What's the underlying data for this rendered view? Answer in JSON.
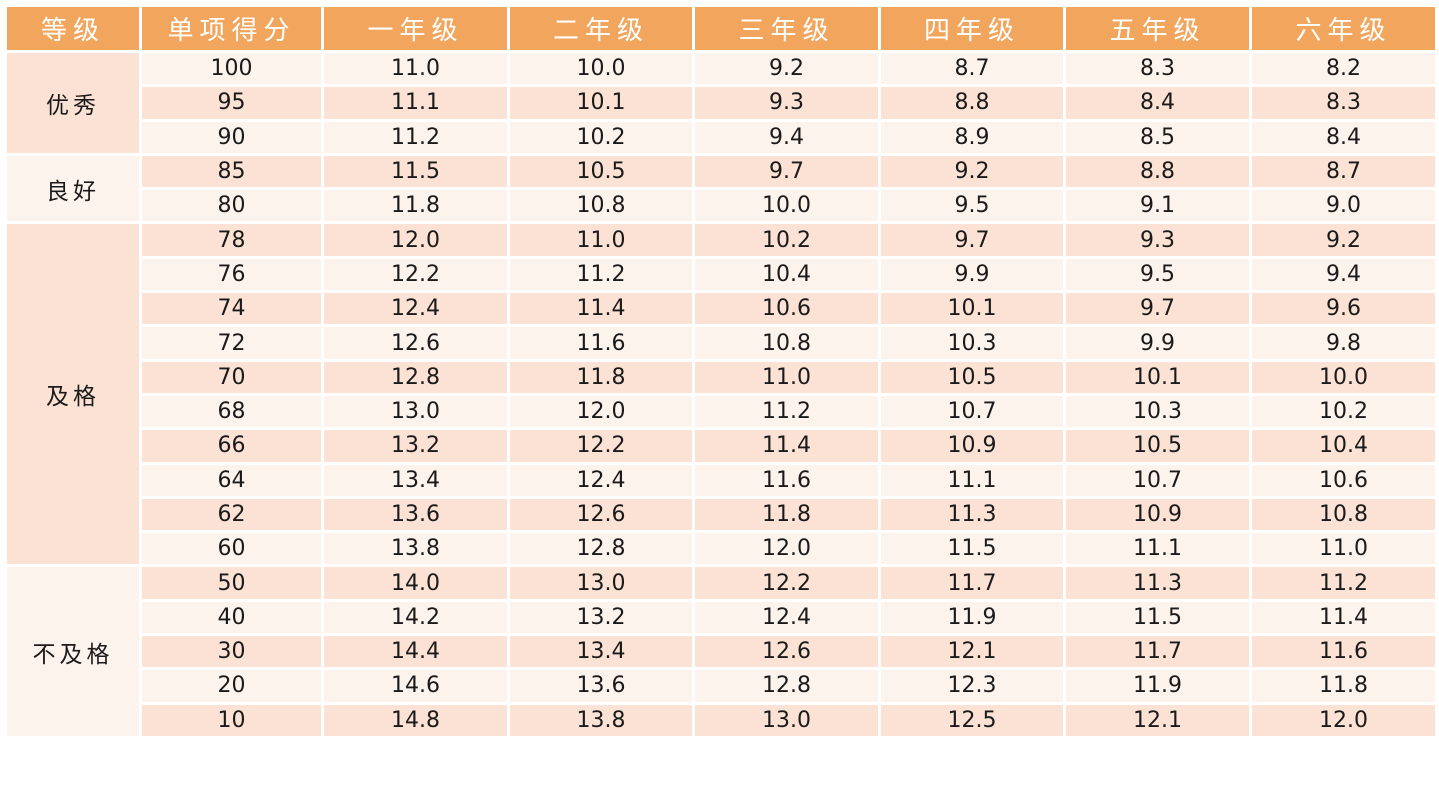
{
  "headers": [
    "等级",
    "单项得分",
    "一年级",
    "二年级",
    "三年级",
    "四年级",
    "五年级",
    "六年级"
  ],
  "rows": [
    {
      "grade": "优秀",
      "span": 3,
      "score": "100",
      "values": [
        "11.0",
        "10.0",
        "9.2",
        "8.7",
        "8.3",
        "8.2"
      ]
    },
    {
      "grade": "",
      "score": "95",
      "values": [
        "11.1",
        "10.1",
        "9.3",
        "8.8",
        "8.4",
        "8.3"
      ]
    },
    {
      "grade": "",
      "score": "90",
      "values": [
        "11.2",
        "10.2",
        "9.4",
        "8.9",
        "8.5",
        "8.4"
      ]
    },
    {
      "grade": "良好",
      "span": 2,
      "score": "85",
      "values": [
        "11.5",
        "10.5",
        "9.7",
        "9.2",
        "8.8",
        "8.7"
      ]
    },
    {
      "grade": "",
      "score": "80",
      "values": [
        "11.8",
        "10.8",
        "10.0",
        "9.5",
        "9.1",
        "9.0"
      ]
    },
    {
      "grade": "及格",
      "span": 10,
      "score": "78",
      "values": [
        "12.0",
        "11.0",
        "10.2",
        "9.7",
        "9.3",
        "9.2"
      ]
    },
    {
      "grade": "",
      "score": "76",
      "values": [
        "12.2",
        "11.2",
        "10.4",
        "9.9",
        "9.5",
        "9.4"
      ]
    },
    {
      "grade": "",
      "score": "74",
      "values": [
        "12.4",
        "11.4",
        "10.6",
        "10.1",
        "9.7",
        "9.6"
      ]
    },
    {
      "grade": "",
      "score": "72",
      "values": [
        "12.6",
        "11.6",
        "10.8",
        "10.3",
        "9.9",
        "9.8"
      ]
    },
    {
      "grade": "",
      "score": "70",
      "values": [
        "12.8",
        "11.8",
        "11.0",
        "10.5",
        "10.1",
        "10.0"
      ]
    },
    {
      "grade": "",
      "score": "68",
      "values": [
        "13.0",
        "12.0",
        "11.2",
        "10.7",
        "10.3",
        "10.2"
      ]
    },
    {
      "grade": "",
      "score": "66",
      "values": [
        "13.2",
        "12.2",
        "11.4",
        "10.9",
        "10.5",
        "10.4"
      ]
    },
    {
      "grade": "",
      "score": "64",
      "values": [
        "13.4",
        "12.4",
        "11.6",
        "11.1",
        "10.7",
        "10.6"
      ]
    },
    {
      "grade": "",
      "score": "62",
      "values": [
        "13.6",
        "12.6",
        "11.8",
        "11.3",
        "10.9",
        "10.8"
      ]
    },
    {
      "grade": "",
      "score": "60",
      "values": [
        "13.8",
        "12.8",
        "12.0",
        "11.5",
        "11.1",
        "11.0"
      ]
    },
    {
      "grade": "不及格",
      "span": 5,
      "score": "50",
      "values": [
        "14.0",
        "13.0",
        "12.2",
        "11.7",
        "11.3",
        "11.2"
      ]
    },
    {
      "grade": "",
      "score": "40",
      "values": [
        "14.2",
        "13.2",
        "12.4",
        "11.9",
        "11.5",
        "11.4"
      ]
    },
    {
      "grade": "",
      "score": "30",
      "values": [
        "14.4",
        "13.4",
        "12.6",
        "12.1",
        "11.7",
        "11.6"
      ]
    },
    {
      "grade": "",
      "score": "20",
      "values": [
        "14.6",
        "13.6",
        "12.8",
        "12.3",
        "11.9",
        "11.8"
      ]
    },
    {
      "grade": "",
      "score": "10",
      "values": [
        "14.8",
        "13.8",
        "13.0",
        "12.5",
        "12.1",
        "12.0"
      ]
    }
  ],
  "colors": {
    "header_bg": "#f2a55c",
    "row_light": "#fdf3ed",
    "row_dark": "#fbe2d4",
    "header_text": "#ffffff"
  }
}
